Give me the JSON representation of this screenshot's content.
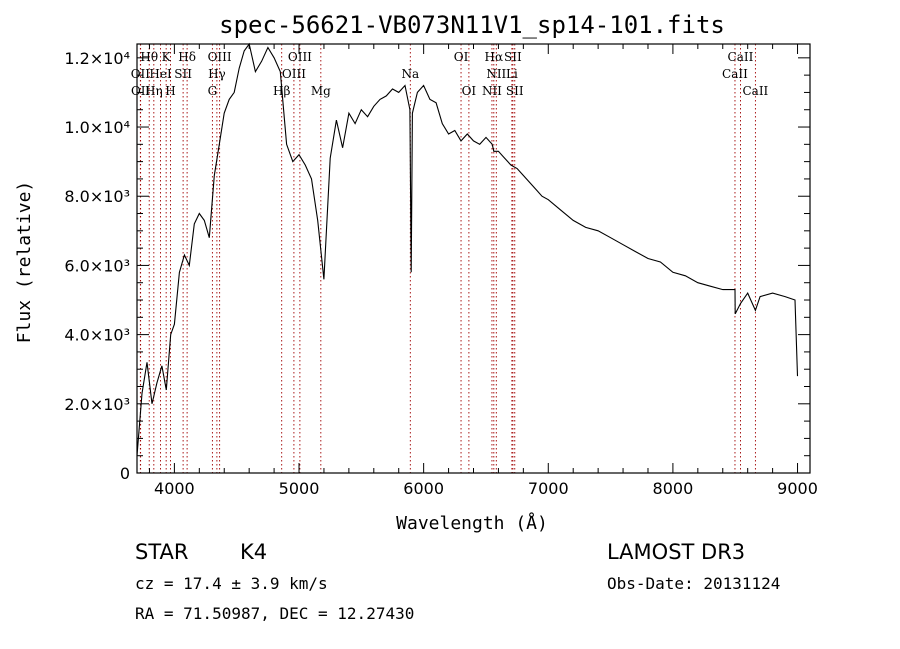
{
  "chart_data": {
    "type": "line",
    "title": "spec-56621-VB073N11V1_sp14-101.fits",
    "xlabel": "Wavelength (Å)",
    "ylabel": "Flux (relative)",
    "xlim": [
      3700,
      9100
    ],
    "ylim": [
      0,
      12400
    ],
    "x_ticks": [
      {
        "value": 4000,
        "label": "4000"
      },
      {
        "value": 5000,
        "label": "5000"
      },
      {
        "value": 6000,
        "label": "6000"
      },
      {
        "value": 7000,
        "label": "7000"
      },
      {
        "value": 8000,
        "label": "8000"
      },
      {
        "value": 9000,
        "label": "9000"
      }
    ],
    "y_ticks": [
      {
        "value": 0,
        "label": "0"
      },
      {
        "value": 2000,
        "label": "2.0×10³"
      },
      {
        "value": 4000,
        "label": "4.0×10³"
      },
      {
        "value": 6000,
        "label": "6.0×10³"
      },
      {
        "value": 8000,
        "label": "8.0×10³"
      },
      {
        "value": 10000,
        "label": "1.0×10⁴"
      },
      {
        "value": 12000,
        "label": "1.2×10⁴"
      }
    ],
    "series": [
      {
        "name": "flux",
        "color": "#000000",
        "x": [
          3700,
          3740,
          3780,
          3820,
          3860,
          3900,
          3935,
          3970,
          4000,
          4040,
          4080,
          4120,
          4160,
          4200,
          4240,
          4280,
          4320,
          4360,
          4400,
          4440,
          4480,
          4520,
          4560,
          4600,
          4650,
          4700,
          4750,
          4800,
          4850,
          4900,
          4950,
          5000,
          5050,
          5100,
          5150,
          5200,
          5250,
          5300,
          5350,
          5400,
          5450,
          5500,
          5550,
          5600,
          5650,
          5700,
          5750,
          5800,
          5850,
          5890,
          5900,
          5910,
          5950,
          6000,
          6050,
          6100,
          6150,
          6200,
          6250,
          6300,
          6350,
          6400,
          6450,
          6500,
          6550,
          6563,
          6600,
          6650,
          6700,
          6750,
          6800,
          6850,
          6900,
          6950,
          7000,
          7100,
          7200,
          7300,
          7400,
          7500,
          7600,
          7700,
          7800,
          7900,
          8000,
          8100,
          8200,
          8300,
          8400,
          8498,
          8500,
          8542,
          8600,
          8662,
          8700,
          8800,
          8900,
          8980,
          9000
        ],
        "y": [
          500,
          2300,
          3200,
          2000,
          2600,
          3100,
          2400,
          4000,
          4300,
          5800,
          6300,
          6000,
          7200,
          7500,
          7300,
          6800,
          8600,
          9500,
          10400,
          10800,
          11000,
          11700,
          12200,
          12400,
          11600,
          11900,
          12300,
          12000,
          11600,
          9500,
          9000,
          9200,
          8900,
          8500,
          7300,
          5600,
          9100,
          10200,
          9400,
          10400,
          10100,
          10500,
          10300,
          10600,
          10800,
          10900,
          11100,
          11000,
          11200,
          10500,
          5800,
          10400,
          11000,
          11200,
          10800,
          10700,
          10100,
          9800,
          9900,
          9600,
          9800,
          9600,
          9500,
          9700,
          9500,
          9300,
          9300,
          9100,
          8900,
          8800,
          8600,
          8400,
          8200,
          8000,
          7900,
          7600,
          7300,
          7100,
          7000,
          6800,
          6600,
          6400,
          6200,
          6100,
          5800,
          5700,
          5500,
          5400,
          5300,
          5300,
          4600,
          4900,
          5200,
          4700,
          5100,
          5200,
          5100,
          5000,
          2800
        ]
      }
    ],
    "lines_markers": [
      {
        "label": "Hθ",
        "wavelength": 3798,
        "row": 1
      },
      {
        "label": "OII",
        "wavelength": 3727,
        "row": 2
      },
      {
        "label": "OII",
        "wavelength": 3729,
        "row": 3
      },
      {
        "label": "K",
        "wavelength": 3934,
        "row": 1
      },
      {
        "label": "HeI",
        "wavelength": 3889,
        "row": 2
      },
      {
        "label": "Hη",
        "wavelength": 3835,
        "row": 3
      },
      {
        "label": "Hδ",
        "wavelength": 4102,
        "row": 1
      },
      {
        "label": "SII",
        "wavelength": 4070,
        "row": 2
      },
      {
        "label": "H",
        "wavelength": 3969,
        "row": 3
      },
      {
        "label": "OIII",
        "wavelength": 4363,
        "row": 1
      },
      {
        "label": "Hγ",
        "wavelength": 4341,
        "row": 2
      },
      {
        "label": "G",
        "wavelength": 4305,
        "row": 3
      },
      {
        "label": "OIII",
        "wavelength": 5007,
        "row": 1
      },
      {
        "label": "OIII",
        "wavelength": 4959,
        "row": 2
      },
      {
        "label": "Hβ",
        "wavelength": 4861,
        "row": 3
      },
      {
        "label": "Mg",
        "wavelength": 5175,
        "row": 3
      },
      {
        "label": "Na",
        "wavelength": 5893,
        "row": 2
      },
      {
        "label": "OI",
        "wavelength": 6300,
        "row": 1
      },
      {
        "label": "OI",
        "wavelength": 6363,
        "row": 3
      },
      {
        "label": "Hα",
        "wavelength": 6563,
        "row": 1
      },
      {
        "label": "NII",
        "wavelength": 6583,
        "row": 2
      },
      {
        "label": "NII",
        "wavelength": 6548,
        "row": 3
      },
      {
        "label": "SII",
        "wavelength": 6716,
        "row": 1
      },
      {
        "label": "Li",
        "wavelength": 6708,
        "row": 2
      },
      {
        "label": "SII",
        "wavelength": 6731,
        "row": 3
      },
      {
        "label": "CaII",
        "wavelength": 8542,
        "row": 1
      },
      {
        "label": "CaII",
        "wavelength": 8498,
        "row": 2
      },
      {
        "label": "CaII",
        "wavelength": 8662,
        "row": 3
      }
    ],
    "marker_color": "#a00000"
  },
  "info": {
    "object_class": "STAR",
    "subclass": "K4",
    "survey": "LAMOST DR3",
    "cz": "cz = 17.4 ± 3.9 km/s",
    "obs_date": "Obs-Date: 20131124",
    "coords": "RA =  71.50987, DEC =  12.27430"
  }
}
